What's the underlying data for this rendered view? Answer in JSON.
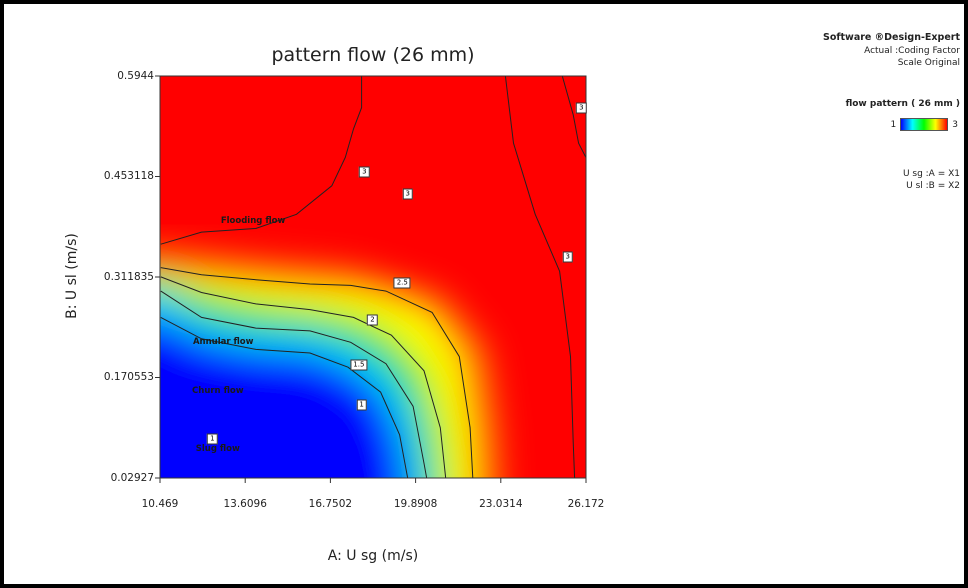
{
  "chart_data": {
    "type": "contour",
    "title": "pattern flow (26 mm)",
    "xlabel": "A: U sg (m/s)",
    "ylabel": "B: U sl (m/s)",
    "xlim": [
      10.469,
      26.172
    ],
    "ylim": [
      0.02927,
      0.5944
    ],
    "x_ticks": [
      "10.469",
      "13.6096",
      "16.7502",
      "19.8908",
      "23.0314",
      "26.172"
    ],
    "y_ticks": [
      "0.02927",
      "0.170553",
      "0.311835",
      "0.453118",
      "0.5944"
    ],
    "response_range": [
      1,
      3
    ],
    "color_scale": [
      "#0000ff",
      "#00ffff",
      "#00ff00",
      "#ffff00",
      "#ff0000"
    ],
    "regions": [
      {
        "label": "Slug flow",
        "value": 1,
        "x": 12.6,
        "y": 0.07
      },
      {
        "label": "Churn flow",
        "value": 1.5,
        "x": 12.6,
        "y": 0.152
      },
      {
        "label": "Annular flow",
        "value": 2,
        "x": 12.8,
        "y": 0.22
      },
      {
        "label": "Flooding flow",
        "value": 3,
        "x": 13.9,
        "y": 0.39
      }
    ],
    "contours": [
      {
        "label": "1",
        "points": [
          [
            10.5,
            0.255
          ],
          [
            12.0,
            0.225
          ],
          [
            14.0,
            0.21
          ],
          [
            16.0,
            0.205
          ],
          [
            17.4,
            0.185
          ],
          [
            18.6,
            0.15
          ],
          [
            19.3,
            0.09
          ],
          [
            19.6,
            0.029
          ]
        ]
      },
      {
        "label": "1.5",
        "points": [
          [
            10.5,
            0.292
          ],
          [
            12.0,
            0.255
          ],
          [
            14.0,
            0.24
          ],
          [
            16.0,
            0.236
          ],
          [
            17.5,
            0.22
          ],
          [
            18.8,
            0.19
          ],
          [
            19.8,
            0.13
          ],
          [
            20.2,
            0.05
          ],
          [
            20.3,
            0.029
          ]
        ]
      },
      {
        "label": "2",
        "points": [
          [
            10.5,
            0.312
          ],
          [
            12.0,
            0.29
          ],
          [
            14.0,
            0.274
          ],
          [
            16.0,
            0.266
          ],
          [
            17.6,
            0.255
          ],
          [
            19.0,
            0.23
          ],
          [
            20.2,
            0.18
          ],
          [
            20.8,
            0.1
          ],
          [
            21.0,
            0.029
          ]
        ]
      },
      {
        "label": "2.5",
        "points": [
          [
            10.5,
            0.325
          ],
          [
            12.0,
            0.315
          ],
          [
            14.0,
            0.308
          ],
          [
            16.0,
            0.302
          ],
          [
            17.5,
            0.3
          ],
          [
            18.8,
            0.292
          ],
          [
            20.5,
            0.262
          ],
          [
            21.5,
            0.2
          ],
          [
            21.9,
            0.1
          ],
          [
            22.0,
            0.029
          ]
        ]
      },
      {
        "label": "3",
        "points": [
          [
            10.5,
            0.358
          ],
          [
            12.0,
            0.375
          ],
          [
            14.0,
            0.38
          ],
          [
            15.5,
            0.4
          ],
          [
            16.8,
            0.44
          ],
          [
            17.3,
            0.48
          ],
          [
            17.6,
            0.52
          ],
          [
            17.9,
            0.55
          ],
          [
            17.9,
            0.5944
          ]
        ]
      },
      {
        "label": "3",
        "points": [
          [
            23.2,
            0.5944
          ],
          [
            23.5,
            0.5
          ],
          [
            24.3,
            0.4
          ],
          [
            25.2,
            0.32
          ],
          [
            25.6,
            0.2
          ],
          [
            25.7,
            0.08
          ],
          [
            25.75,
            0.029
          ]
        ]
      },
      {
        "label": "3",
        "points": [
          [
            25.3,
            0.5944
          ],
          [
            25.7,
            0.54
          ],
          [
            25.9,
            0.5
          ],
          [
            26.17,
            0.48
          ]
        ]
      }
    ],
    "flags": [
      {
        "text": "3",
        "x": 26.0,
        "y": 0.55
      },
      {
        "text": "3",
        "x": 18.0,
        "y": 0.46
      },
      {
        "text": "3",
        "x": 19.6,
        "y": 0.428
      },
      {
        "text": "3",
        "x": 25.5,
        "y": 0.34
      },
      {
        "text": "2.5",
        "x": 19.4,
        "y": 0.304
      },
      {
        "text": "2",
        "x": 18.3,
        "y": 0.252
      },
      {
        "text": "1.5",
        "x": 17.8,
        "y": 0.188
      },
      {
        "text": "1",
        "x": 17.9,
        "y": 0.132
      },
      {
        "text": "1",
        "x": 12.4,
        "y": 0.084
      }
    ]
  },
  "info": {
    "brand": "Software ®Design-Expert",
    "coding": "Actual :Coding Factor",
    "scale": "Scale Original",
    "legend_title": "flow pattern  ( 26 mm )",
    "legend_min": "1",
    "legend_max": "3",
    "factor_a": "U sg :A = X1",
    "factor_b": "U sl  :B = X2"
  }
}
